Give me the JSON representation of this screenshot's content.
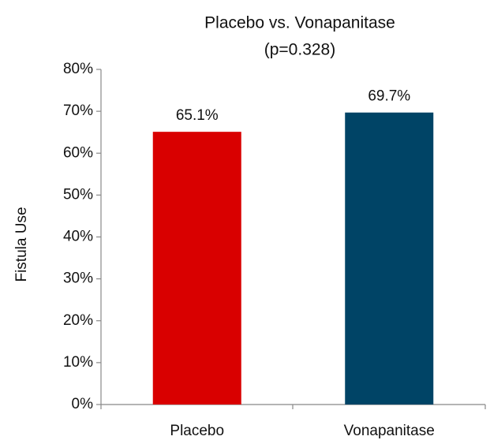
{
  "chart_data": {
    "type": "bar",
    "title": "Placebo vs. Vonapanitase",
    "subtitle": "(p=0.328)",
    "y_label": "Fistula Use",
    "categories": [
      "Placebo",
      "Vonapanitase"
    ],
    "values": [
      65.1,
      69.7
    ],
    "value_labels": [
      "65.1%",
      "69.7%"
    ],
    "colors": [
      "#d90000",
      "#004466"
    ],
    "ylim": [
      0,
      80
    ],
    "yticks": [
      {
        "value": 0,
        "label": "0%"
      },
      {
        "value": 10,
        "label": "10%"
      },
      {
        "value": 20,
        "label": "20%"
      },
      {
        "value": 30,
        "label": "30%"
      },
      {
        "value": 40,
        "label": "40%"
      },
      {
        "value": 50,
        "label": "50%"
      },
      {
        "value": 60,
        "label": "60%"
      },
      {
        "value": 70,
        "label": "70%"
      },
      {
        "value": 80,
        "label": "80%"
      }
    ],
    "grid": false
  }
}
